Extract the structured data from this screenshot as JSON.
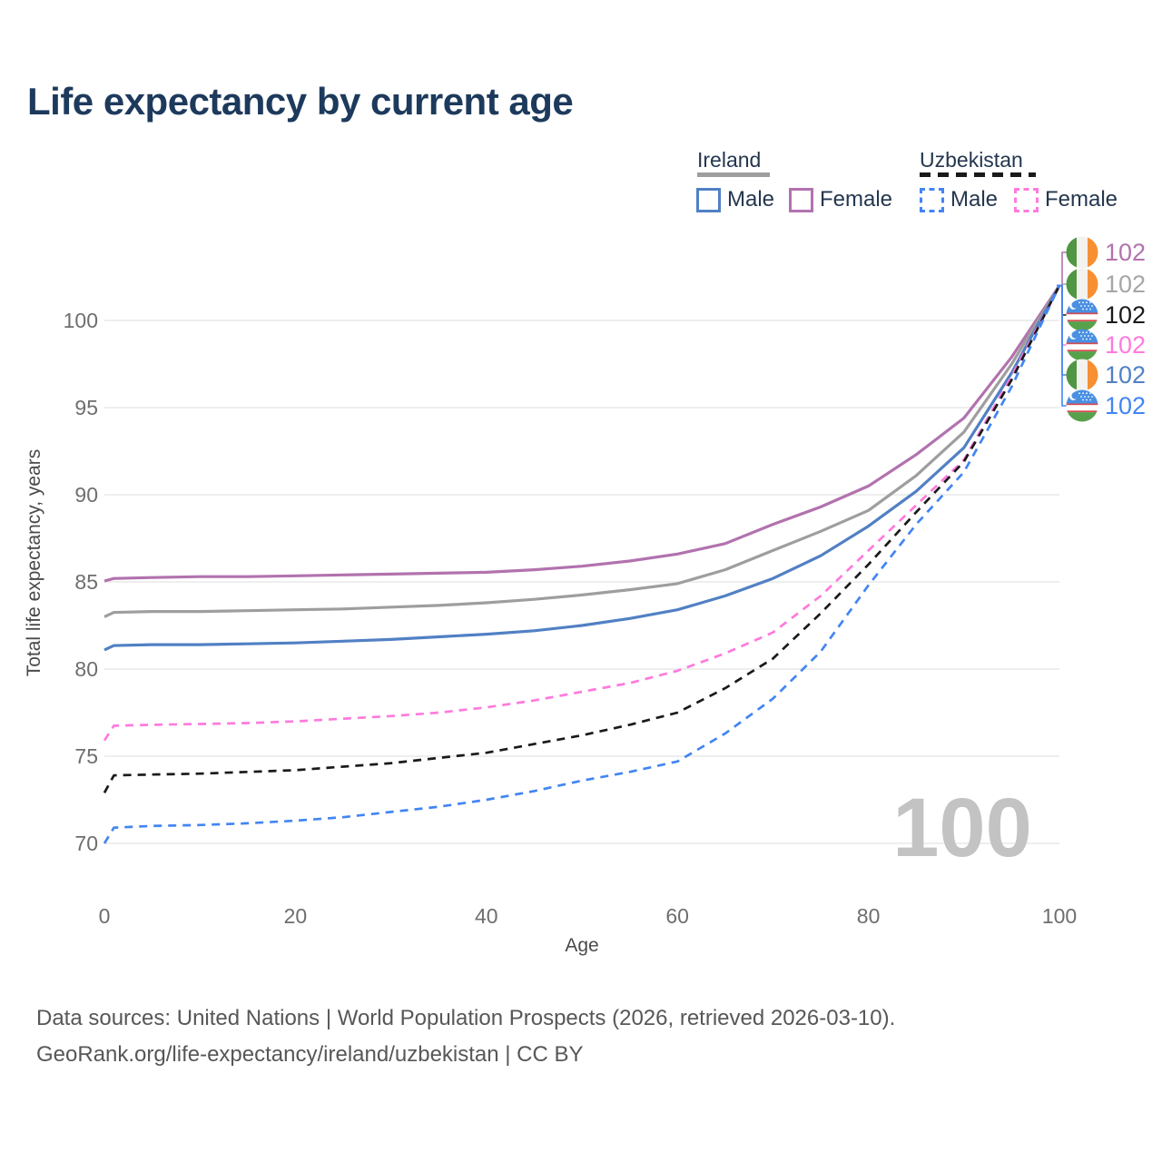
{
  "header": {
    "title": "Life expectancy by current age"
  },
  "legend": {
    "groups": [
      {
        "id": "ireland",
        "label": "Ireland",
        "rule_color": "#9e9e9e",
        "rule_style": "solid",
        "items": [
          {
            "id": "ireland-male",
            "label": "Male",
            "box_color": "#5180c4",
            "box_style": "solid"
          },
          {
            "id": "ireland-female",
            "label": "Female",
            "box_color": "#b272ae",
            "box_style": "solid"
          }
        ]
      },
      {
        "id": "uzbekistan",
        "label": "Uzbekistan",
        "rule_color": "#1a1a1a",
        "rule_style": "dashed",
        "items": [
          {
            "id": "uzbekistan-male",
            "label": "Male",
            "box_color": "#4285f4",
            "box_style": "dashed"
          },
          {
            "id": "uzbekistan-female",
            "label": "Female",
            "box_color": "#ff7ade",
            "box_style": "dashed"
          }
        ]
      }
    ]
  },
  "chart_data": {
    "type": "line",
    "title": "Life expectancy by current age",
    "xlabel": "Age",
    "ylabel": "Total life expectancy, years",
    "x_ticks": [
      0,
      20,
      40,
      60,
      80,
      100
    ],
    "y_ticks": [
      70,
      75,
      80,
      85,
      90,
      95,
      100
    ],
    "xlim": [
      0,
      100
    ],
    "ylim": [
      69,
      103
    ],
    "grid": "horizontal",
    "grid_color": "#e8e8e8",
    "watermark_age": "100",
    "ages": [
      0,
      1,
      5,
      10,
      15,
      20,
      25,
      30,
      35,
      40,
      45,
      50,
      55,
      60,
      65,
      70,
      75,
      80,
      85,
      90,
      95,
      100
    ],
    "series": [
      {
        "name": "Ireland Female",
        "country": "Ireland",
        "sex": "Female",
        "flag": "ireland",
        "color": "#b272ae",
        "dash": "solid",
        "values": [
          85.05,
          85.2,
          85.25,
          85.3,
          85.3,
          85.35,
          85.4,
          85.45,
          85.5,
          85.55,
          85.7,
          85.9,
          86.2,
          86.6,
          87.2,
          88.3,
          89.3,
          90.5,
          92.3,
          94.4,
          97.9,
          102
        ]
      },
      {
        "name": "Ireland Both sexes",
        "country": "Ireland",
        "sex": "Both",
        "flag": "ireland",
        "color": "#9e9e9e",
        "dash": "solid",
        "values": [
          83.0,
          83.25,
          83.3,
          83.3,
          83.35,
          83.4,
          83.45,
          83.55,
          83.65,
          83.8,
          84.0,
          84.25,
          84.55,
          84.9,
          85.7,
          86.8,
          87.9,
          89.1,
          91.1,
          93.6,
          97.5,
          102
        ]
      },
      {
        "name": "Ireland Male",
        "country": "Ireland",
        "sex": "Male",
        "flag": "ireland",
        "color": "#5180c4",
        "dash": "solid",
        "values": [
          81.1,
          81.35,
          81.4,
          81.4,
          81.45,
          81.5,
          81.6,
          81.7,
          81.85,
          82.0,
          82.2,
          82.5,
          82.9,
          83.4,
          84.2,
          85.2,
          86.5,
          88.2,
          90.2,
          92.7,
          97.0,
          102
        ]
      },
      {
        "name": "Uzbekistan Female",
        "country": "Uzbekistan",
        "sex": "Female",
        "flag": "uzbekistan",
        "color": "#ff7ade",
        "dash": "dashed",
        "values": [
          75.9,
          76.75,
          76.8,
          76.85,
          76.9,
          77.0,
          77.15,
          77.3,
          77.5,
          77.8,
          78.2,
          78.7,
          79.2,
          79.9,
          80.9,
          82.1,
          84.2,
          86.8,
          89.4,
          92.0,
          96.8,
          102
        ]
      },
      {
        "name": "Uzbekistan Both sexes",
        "country": "Uzbekistan",
        "sex": "Both",
        "flag": "uzbekistan",
        "color": "#1a1a1a",
        "dash": "dashed",
        "values": [
          72.9,
          73.9,
          73.95,
          74.0,
          74.1,
          74.2,
          74.4,
          74.6,
          74.9,
          75.2,
          75.7,
          76.2,
          76.8,
          77.5,
          78.9,
          80.6,
          83.2,
          86.0,
          89.0,
          91.9,
          96.6,
          102
        ]
      },
      {
        "name": "Uzbekistan Male",
        "country": "Uzbekistan",
        "sex": "Male",
        "flag": "uzbekistan",
        "color": "#4285f4",
        "dash": "dashed",
        "values": [
          70.0,
          70.9,
          71.0,
          71.05,
          71.15,
          71.3,
          71.5,
          71.8,
          72.1,
          72.5,
          73.0,
          73.6,
          74.1,
          74.7,
          76.3,
          78.3,
          81.0,
          84.8,
          88.3,
          91.3,
          96.2,
          102
        ]
      }
    ],
    "end_labels": [
      {
        "value": "102",
        "color": "#b272ae",
        "flag": "ireland",
        "series": "Ireland Female"
      },
      {
        "value": "102",
        "color": "#a6a6a6",
        "flag": "ireland",
        "series": "Ireland Both sexes"
      },
      {
        "value": "102",
        "color": "#1a1a1a",
        "flag": "uzbekistan",
        "series": "Uzbekistan Both sexes"
      },
      {
        "value": "102",
        "color": "#ff7ade",
        "flag": "uzbekistan",
        "series": "Uzbekistan Female"
      },
      {
        "value": "102",
        "color": "#5180c4",
        "flag": "ireland",
        "series": "Ireland Male"
      },
      {
        "value": "102",
        "color": "#4285f4",
        "flag": "uzbekistan",
        "series": "Uzbekistan Male"
      }
    ]
  },
  "footer": {
    "line1": "Data sources: United Nations | World Population Prospects (2026, retrieved 2026-03-10).",
    "line2": "GeoRank.org/life-expectancy/ireland/uzbekistan | CC BY"
  }
}
